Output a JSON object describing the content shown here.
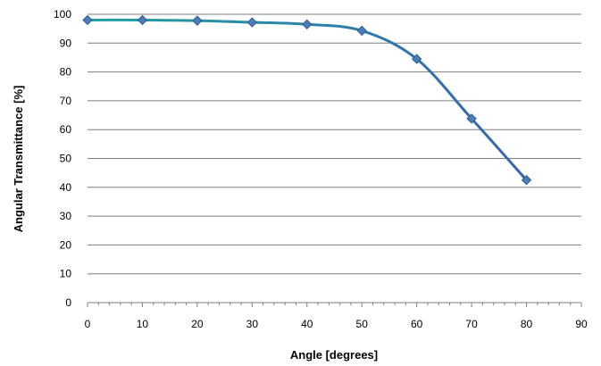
{
  "chart_data": {
    "type": "line",
    "xlabel": "Angle [degrees]",
    "ylabel": "Angular Transmittance [%]",
    "xlim": [
      0,
      90
    ],
    "ylim": [
      0,
      100
    ],
    "x_ticks": [
      0,
      10,
      20,
      30,
      40,
      50,
      60,
      70,
      80,
      90
    ],
    "y_ticks": [
      0,
      10,
      20,
      30,
      40,
      50,
      60,
      70,
      80,
      90,
      100
    ],
    "grid": "horizontal",
    "smooth": true,
    "series": [
      {
        "x": [
          0,
          10,
          20,
          30,
          40,
          50,
          60,
          70,
          80
        ],
        "values": [
          98,
          98,
          97.8,
          97.2,
          96.5,
          94.3,
          84.5,
          63.8,
          42.5
        ]
      }
    ],
    "colors": {
      "line_start": "#1fa3a3",
      "line_end": "#3a64b0",
      "marker": "#4a7ebb",
      "marker_stroke": "#2f5b8f",
      "grid": "#7f7f7f",
      "axis": "#7f7f7f"
    }
  }
}
